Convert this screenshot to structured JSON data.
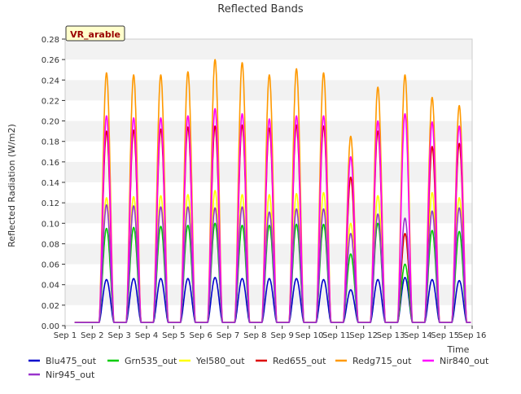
{
  "chart_data": {
    "type": "line",
    "title": "Reflected Bands",
    "xlabel": "Time",
    "ylabel": "Reflected Radiation (W/m2)",
    "site_label": "VR_arable",
    "x_categories": [
      "Sep 1",
      "Sep 2",
      "Sep 3",
      "Sep 4",
      "Sep 5",
      "Sep 6",
      "Sep 7",
      "Sep 8",
      "Sep 9",
      "Sep 10",
      "Sep 11",
      "Sep 12",
      "Sep 13",
      "Sep 14",
      "Sep 15",
      "Sep 16"
    ],
    "ylim": [
      0.0,
      0.28
    ],
    "yticks": [
      "0.00",
      "0.02",
      "0.04",
      "0.06",
      "0.08",
      "0.10",
      "0.12",
      "0.14",
      "0.16",
      "0.18",
      "0.20",
      "0.22",
      "0.24",
      "0.26",
      "0.28"
    ],
    "grid": "horizontal bands",
    "legend_position": "bottom",
    "series": [
      {
        "name": "Blu475_out",
        "color": "#0000cc",
        "daily_peak": [
          0.045,
          0.046,
          0.046,
          0.046,
          0.047,
          0.046,
          0.046,
          0.046,
          0.045,
          0.035,
          0.045,
          0.047,
          0.045,
          0.044
        ]
      },
      {
        "name": "Grn535_out",
        "color": "#00cc00",
        "daily_peak": [
          0.095,
          0.096,
          0.097,
          0.098,
          0.1,
          0.098,
          0.098,
          0.099,
          0.099,
          0.07,
          0.1,
          0.06,
          0.093,
          0.092
        ]
      },
      {
        "name": "Yel580_out",
        "color": "#ffff00",
        "daily_peak": [
          0.125,
          0.126,
          0.127,
          0.128,
          0.132,
          0.128,
          0.128,
          0.129,
          0.13,
          0.1,
          0.127,
          0.09,
          0.13,
          0.125
        ]
      },
      {
        "name": "Red655_out",
        "color": "#dd0000",
        "daily_peak": [
          0.19,
          0.191,
          0.192,
          0.194,
          0.195,
          0.196,
          0.193,
          0.196,
          0.195,
          0.145,
          0.19,
          0.09,
          0.175,
          0.178
        ]
      },
      {
        "name": "Redg715_out",
        "color": "#ff9900",
        "daily_peak": [
          0.247,
          0.245,
          0.245,
          0.248,
          0.26,
          0.257,
          0.245,
          0.251,
          0.247,
          0.185,
          0.233,
          0.245,
          0.223,
          0.215
        ]
      },
      {
        "name": "Nir840_out",
        "color": "#ff00ff",
        "daily_peak": [
          0.205,
          0.203,
          0.203,
          0.205,
          0.212,
          0.207,
          0.202,
          0.205,
          0.205,
          0.165,
          0.2,
          0.207,
          0.199,
          0.195
        ]
      },
      {
        "name": "Nir945_out",
        "color": "#9933cc",
        "daily_peak": [
          0.118,
          0.117,
          0.116,
          0.116,
          0.115,
          0.116,
          0.111,
          0.114,
          0.114,
          0.09,
          0.109,
          0.105,
          0.112,
          0.115
        ]
      }
    ]
  }
}
